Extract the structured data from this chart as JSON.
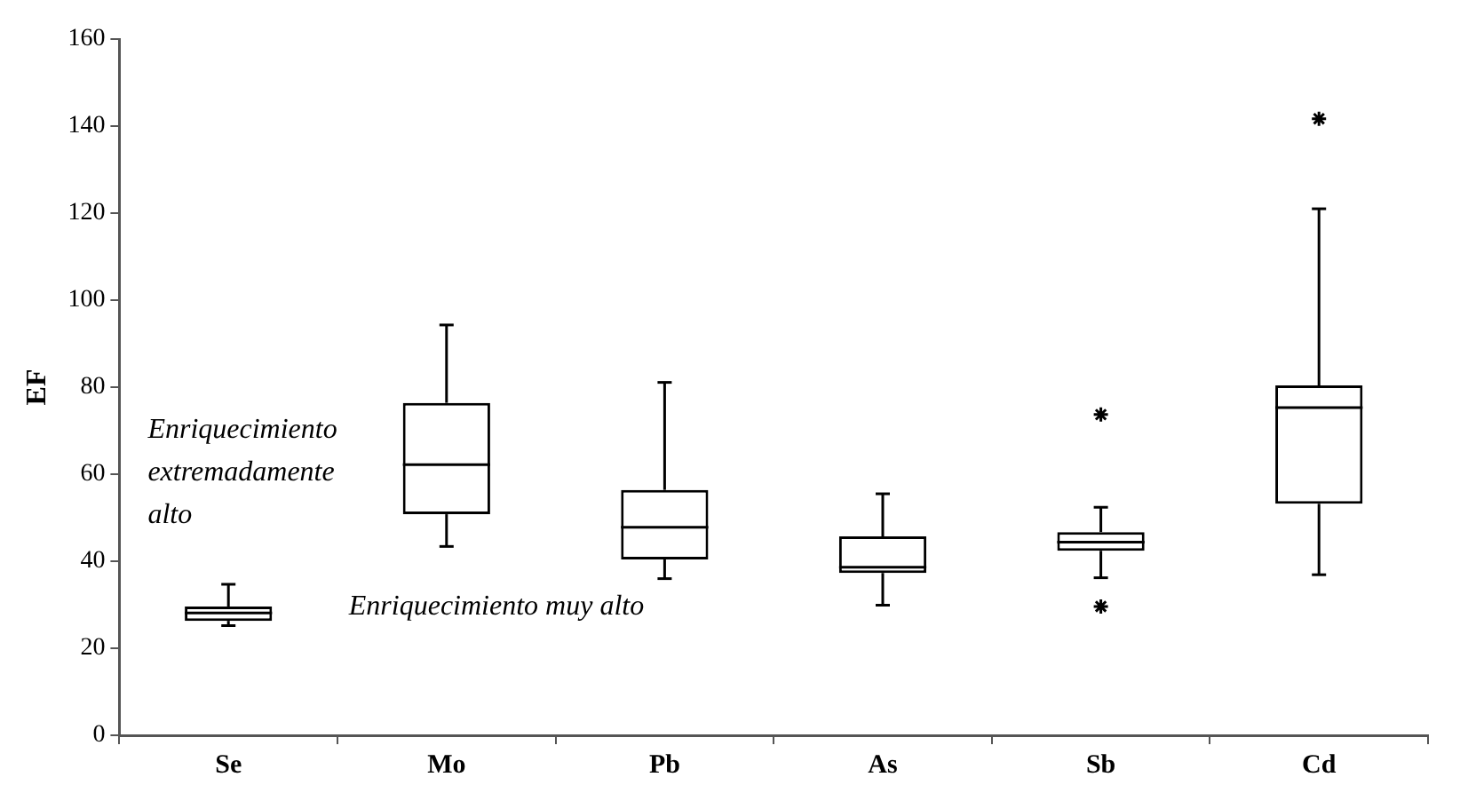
{
  "chart_data": {
    "type": "box",
    "ylabel": "EF",
    "categories": [
      "Se",
      "Mo",
      "Pb",
      "As",
      "Sb",
      "Cd"
    ],
    "boxes": [
      {
        "low": 25.2,
        "q1": 26.3,
        "median": 28.1,
        "q3": 29.6,
        "high": 34.7
      },
      {
        "low": 43.4,
        "q1": 50.8,
        "median": 62.2,
        "q3": 76.4,
        "high": 94.3
      },
      {
        "low": 36,
        "q1": 40.4,
        "median": 47.8,
        "q3": 56.4,
        "high": 81.1
      },
      {
        "low": 29.9,
        "q1": 37.3,
        "median": 38.6,
        "q3": 45.7,
        "high": 55.5
      },
      {
        "low": 36.2,
        "q1": 42.4,
        "median": 44.4,
        "q3": 46.7,
        "high": 52.4,
        "outliers": [
          73.7,
          29.6
        ]
      },
      {
        "low": 36.9,
        "q1": 53.2,
        "median": 75.3,
        "q3": 80.4,
        "high": 121,
        "outliers": [
          141.7
        ]
      }
    ],
    "color": "#000000",
    "marker": "star",
    "ylim": [
      0,
      160
    ],
    "yticks": [
      0,
      20,
      40,
      60,
      80,
      100,
      120,
      140,
      160
    ],
    "grid": false,
    "legend": false,
    "annotations": [
      "Enriquecimiento extremadamente alto",
      "Enriquecimiento muy alto"
    ]
  }
}
